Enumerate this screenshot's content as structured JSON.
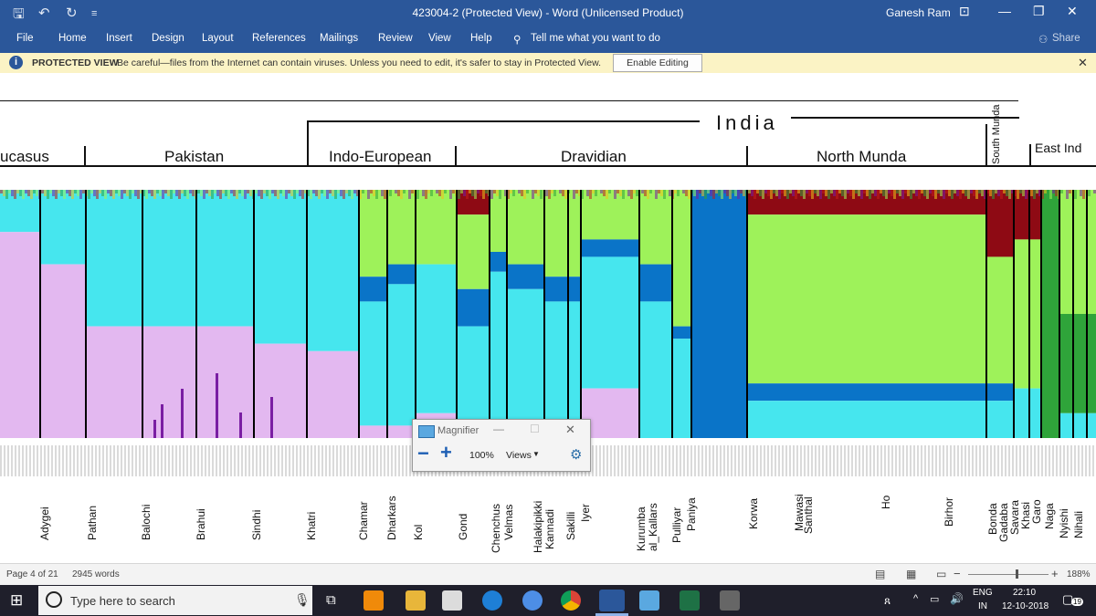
{
  "window": {
    "title": "423004-2 (Protected View)  -  Word (Unlicensed Product)",
    "user": "Ganesh Ram"
  },
  "ribbon": {
    "tabs": [
      "File",
      "Home",
      "Insert",
      "Design",
      "Layout",
      "References",
      "Mailings",
      "Review",
      "View",
      "Help"
    ],
    "tell_me": "Tell me what you want to do",
    "share": "Share"
  },
  "protected_view": {
    "label": "PROTECTED VIEW",
    "message": "Be careful—files from the Internet can contain viruses. Unless you need to edit, it's safer to stay in Protected View.",
    "button": "Enable Editing"
  },
  "figure": {
    "top_region": "India",
    "regions": [
      "ucasus",
      "Pakistan",
      "Indo-European",
      "Dravidian",
      "North Munda",
      "South Munda",
      "East Ind"
    ],
    "populations": [
      "Adygei",
      "Pathan",
      "Balochi",
      "Brahui",
      "Sindhi",
      "Khatri",
      "Chamar",
      "Dharkars",
      "Kol",
      "Gond",
      "Chenchus",
      "Velmas",
      "Halakipikki",
      "Kannadi",
      "Sakilli",
      "Iyer",
      "Kurumba",
      "al_Kallars",
      "Pulliyar",
      "Paniya",
      "Korwa",
      "Mawasi",
      "Santhal",
      "Ho",
      "Birhor",
      "Bonda",
      "Gadaba",
      "Savara",
      "Khasi",
      "Garo",
      "Naga",
      "Nyishi",
      "Nihali"
    ],
    "colors": {
      "lilac": "#e3b8f0",
      "cyan": "#46e6ee",
      "green": "#9ef25a",
      "blue": "#0a74c8",
      "darkred": "#8e0a14",
      "purple": "#7a1ea3",
      "dkgreen": "#2fa43a"
    }
  },
  "magnifier": {
    "title": "Magnifier",
    "zoom": "100%",
    "views": "Views"
  },
  "status": {
    "page": "Page 4 of 21",
    "words": "2945 words",
    "zoom": "188%"
  },
  "taskbar": {
    "search": "Type here to search",
    "lang1": "ENG",
    "lang2": "IN",
    "time": "22:10",
    "date": "12-10-2018",
    "notifications": "19"
  }
}
